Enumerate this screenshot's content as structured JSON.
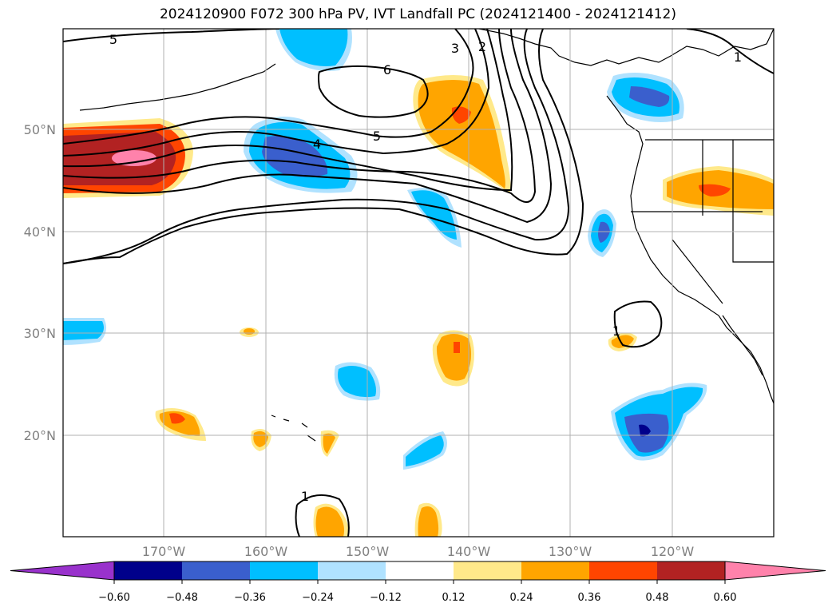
{
  "title": "2024120900 F072 300 hPa PV, IVT Landfall PC (2024121400 - 2024121412)",
  "lat_labels": [
    "50°N",
    "40°N",
    "30°N",
    "20°N"
  ],
  "lon_labels": [
    "170°W",
    "160°W",
    "150°W",
    "140°W",
    "130°W",
    "120°W"
  ],
  "colorbar": {
    "ticks": [
      "−0.60",
      "−0.48",
      "−0.36",
      "−0.24",
      "−0.12",
      "0.12",
      "0.24",
      "0.36",
      "0.48",
      "0.60"
    ],
    "colors": [
      "#9932cc",
      "#00008b",
      "#3a5fcd",
      "#00bfff",
      "#b0e2ff",
      "#ffffff",
      "#ffe98a",
      "#ffa500",
      "#ff4500",
      "#b22222",
      "#ff82ab"
    ]
  },
  "contour_labels": [
    "5",
    "6",
    "5",
    "4",
    "3",
    "2",
    "1",
    "1",
    "1"
  ]
}
